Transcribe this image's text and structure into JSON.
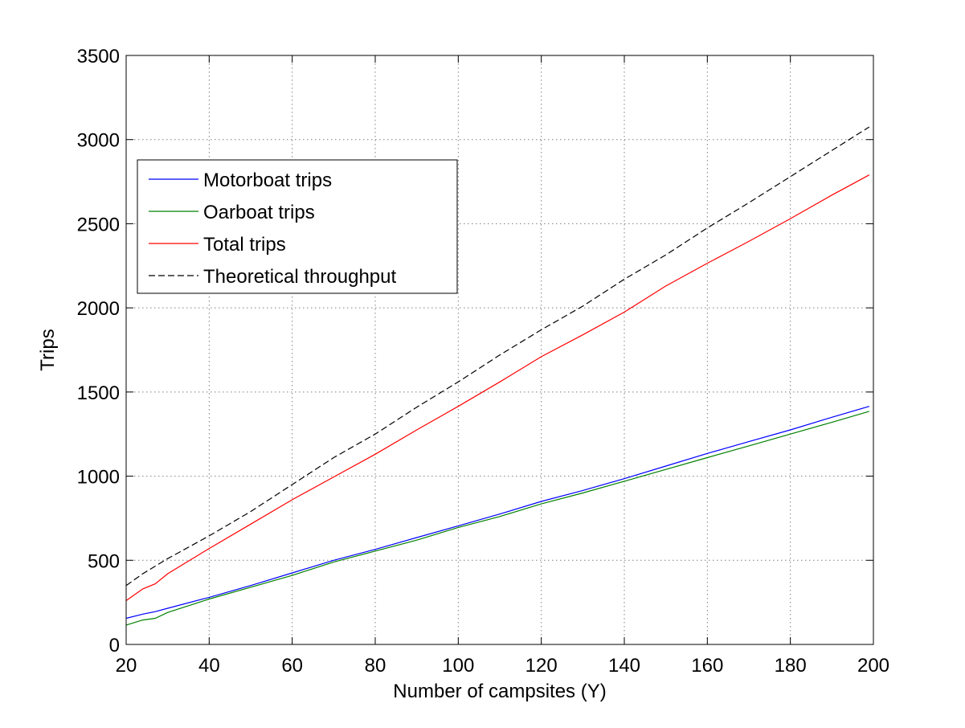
{
  "chart_data": {
    "type": "line",
    "title": "",
    "xlabel": "Number of campsites (Y)",
    "ylabel": "Trips",
    "xlim": [
      20,
      200
    ],
    "ylim": [
      0,
      3500
    ],
    "xticks": [
      20,
      40,
      60,
      80,
      100,
      120,
      140,
      160,
      180,
      200
    ],
    "yticks": [
      0,
      500,
      1000,
      1500,
      2000,
      2500,
      3000,
      3500
    ],
    "xtick_labels": [
      "20",
      "40",
      "60",
      "80",
      "100",
      "120",
      "140",
      "160",
      "180",
      "200"
    ],
    "ytick_labels": [
      "0",
      "500",
      "1000",
      "1500",
      "2000",
      "2500",
      "3000",
      "3500"
    ],
    "grid": true,
    "legend_position": "upper-left",
    "x": [
      20,
      24,
      27,
      30,
      40,
      50,
      60,
      70,
      80,
      90,
      100,
      110,
      120,
      130,
      140,
      150,
      160,
      170,
      180,
      190,
      199
    ],
    "series": [
      {
        "name": "Motorboat trips",
        "color": "#0000ff",
        "style": "solid",
        "values": [
          155,
          180,
          195,
          215,
          280,
          350,
          425,
          500,
          565,
          635,
          705,
          775,
          850,
          915,
          985,
          1060,
          1135,
          1205,
          1275,
          1350,
          1415
        ]
      },
      {
        "name": "Oarboat trips",
        "color": "#008000",
        "style": "solid",
        "values": [
          115,
          145,
          155,
          190,
          270,
          340,
          410,
          490,
          555,
          620,
          695,
          760,
          835,
          900,
          970,
          1040,
          1110,
          1180,
          1250,
          1320,
          1385
        ]
      },
      {
        "name": "Total trips",
        "color": "#ff0000",
        "style": "solid",
        "values": [
          260,
          330,
          360,
          420,
          570,
          715,
          860,
          995,
          1130,
          1275,
          1415,
          1560,
          1710,
          1840,
          1975,
          2130,
          2265,
          2395,
          2530,
          2670,
          2790
        ]
      },
      {
        "name": "Theoretical throughput",
        "color": "#000000",
        "style": "dashed",
        "values": [
          350,
          420,
          465,
          510,
          645,
          790,
          950,
          1110,
          1250,
          1410,
          1560,
          1720,
          1870,
          2010,
          2170,
          2315,
          2475,
          2625,
          2780,
          2935,
          3075
        ]
      }
    ]
  }
}
